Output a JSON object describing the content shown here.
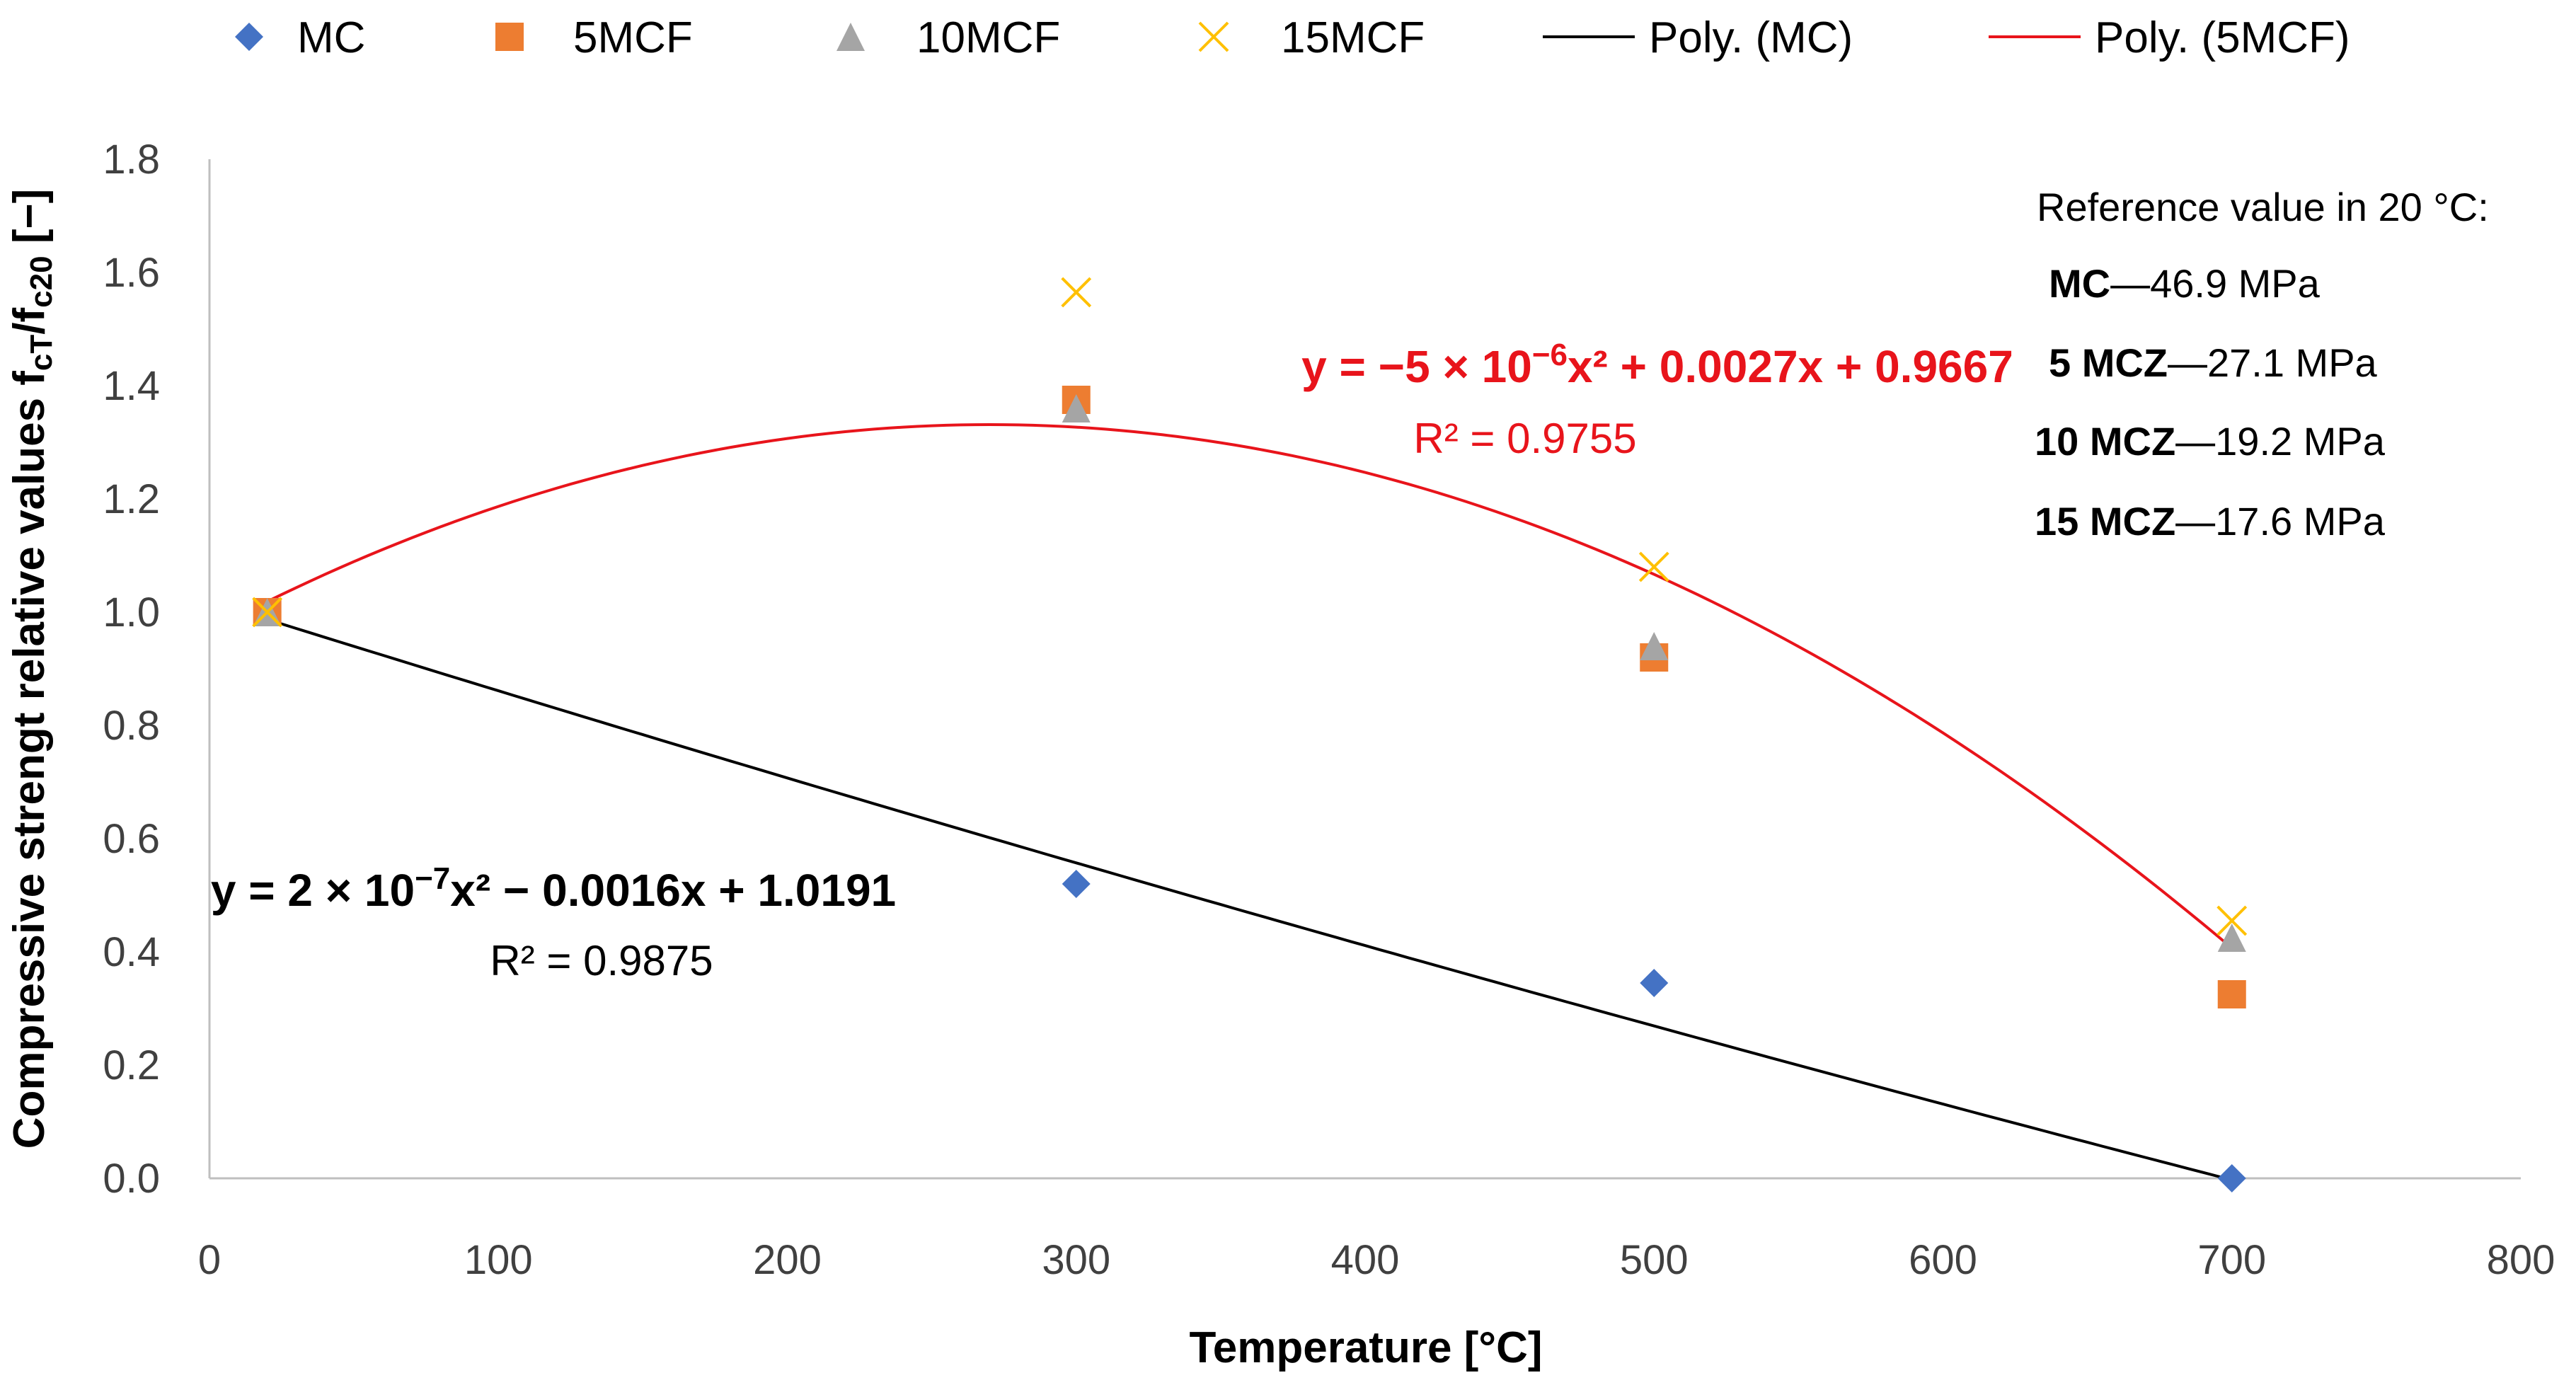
{
  "chart_data": {
    "type": "scatter",
    "xlabel": "Temperature [°C]",
    "ylabel": {
      "prefix": "Compressive strengt relative values f",
      "sub1": "cT",
      "mid": "/f",
      "sub2": "c20",
      "suffix": " [−]"
    },
    "xlim": [
      0,
      800
    ],
    "ylim": [
      0,
      1.8
    ],
    "x_ticks": [
      "0",
      "100",
      "200",
      "300",
      "400",
      "500",
      "600",
      "700",
      "800"
    ],
    "y_ticks": [
      "0.0",
      "0.2",
      "0.4",
      "0.6",
      "0.8",
      "1.0",
      "1.2",
      "1.4",
      "1.6",
      "1.8"
    ],
    "grid": false,
    "legend_position": "top",
    "series": [
      {
        "name": "MC",
        "marker": "diamond",
        "color": "#4472c4",
        "points": [
          [
            20,
            1.0
          ],
          [
            300,
            0.52
          ],
          [
            500,
            0.345
          ],
          [
            700,
            0.0
          ]
        ]
      },
      {
        "name": "5MCF",
        "marker": "square",
        "color": "#ed7d31",
        "points": [
          [
            20,
            1.0
          ],
          [
            300,
            1.375
          ],
          [
            500,
            0.92
          ],
          [
            700,
            0.325
          ]
        ]
      },
      {
        "name": "10MCF",
        "marker": "triangle",
        "color": "#a5a5a5",
        "points": [
          [
            20,
            1.0
          ],
          [
            300,
            1.36
          ],
          [
            500,
            0.94
          ],
          [
            700,
            0.425
          ]
        ]
      },
      {
        "name": "15MCF",
        "marker": "x",
        "color": "#ffc000",
        "points": [
          [
            20,
            1.0
          ],
          [
            300,
            1.565
          ],
          [
            500,
            1.08
          ],
          [
            700,
            0.455
          ]
        ]
      }
    ],
    "trendlines": [
      {
        "name": "Poly. (MC)",
        "color": "#000000",
        "x_range": [
          20,
          700
        ],
        "coefficients": {
          "a": 2e-07,
          "b": -0.0016,
          "c": 1.0191
        },
        "equation": {
          "prefix": "y = 2 × 10",
          "exp": "−7",
          "suffix": "x² − 0.0016x + 1.0191"
        },
        "r2": "R² = 0.9875"
      },
      {
        "name": "Poly. (5MCF)",
        "color": "#e8141b",
        "x_range": [
          20,
          700
        ],
        "coefficients": {
          "a": -5e-06,
          "b": 0.0027,
          "c": 0.9667
        },
        "equation": {
          "prefix": "y = −5 × 10",
          "exp": "−6",
          "suffix": "x² + 0.0027x + 0.9667"
        },
        "r2": "R² = 0.9755"
      }
    ],
    "reference_note": {
      "title": "Reference value in 20 °C:",
      "rows": [
        {
          "label": "MC",
          "value": "—46.9 MPa"
        },
        {
          "label": "5 MCZ",
          "value": "—27.1 MPa"
        },
        {
          "label": "10 MCZ",
          "value": "—19.2 MPa"
        },
        {
          "label": "15 MCZ",
          "value": "—17.6 MPa"
        }
      ]
    }
  }
}
